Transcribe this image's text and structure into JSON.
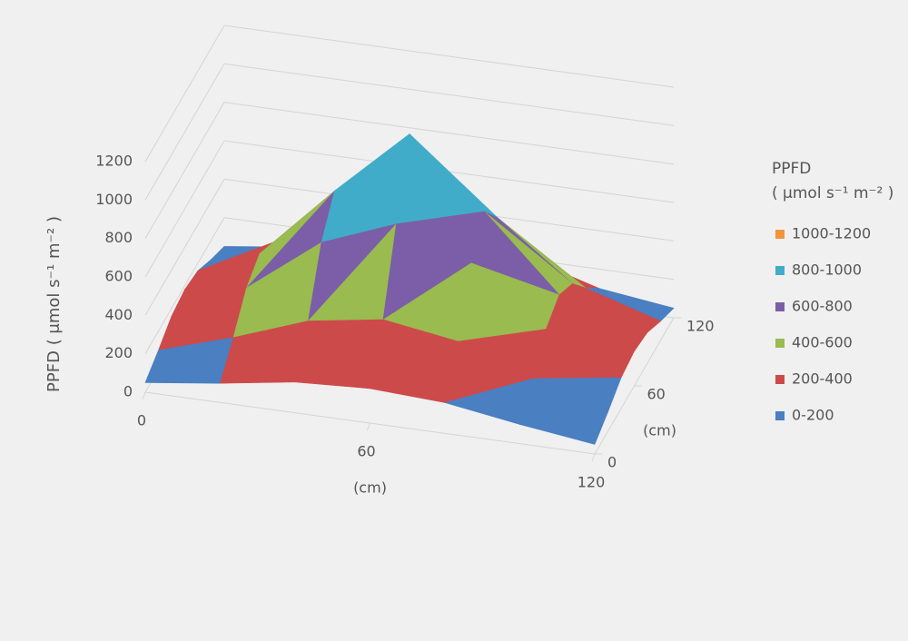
{
  "chart_data": {
    "type": "surface",
    "x": [
      0,
      20,
      40,
      60,
      80,
      100,
      120
    ],
    "y": [
      0,
      20,
      40,
      60,
      80,
      100,
      120
    ],
    "z": [
      [
        50,
        100,
        160,
        180,
        160,
        100,
        50
      ],
      [
        100,
        220,
        360,
        420,
        360,
        220,
        100
      ],
      [
        160,
        360,
        650,
        800,
        650,
        360,
        160
      ],
      [
        180,
        420,
        800,
        1150,
        800,
        420,
        180
      ],
      [
        160,
        360,
        650,
        800,
        650,
        360,
        160
      ],
      [
        100,
        220,
        360,
        420,
        360,
        220,
        100
      ],
      [
        50,
        100,
        160,
        180,
        160,
        100,
        50
      ]
    ],
    "xlim": [
      0,
      120
    ],
    "xticks": [
      0,
      60,
      120
    ],
    "xlabel": "(cm)",
    "ylim": [
      0,
      120
    ],
    "yticks": [
      0,
      60,
      120
    ],
    "ylabel": "(cm)",
    "zlim": [
      0,
      1200
    ],
    "zticks": [
      0,
      200,
      400,
      600,
      800,
      1000,
      1200
    ],
    "zlabel": "PPFD ( μmol s⁻¹ m⁻² )",
    "grid": true,
    "legend_title": [
      "PPFD",
      "( μmol s⁻¹ m⁻² )"
    ],
    "legend": [
      {
        "name": "0-200",
        "color": "#4a7fc1"
      },
      {
        "name": "200-400",
        "color": "#cd4a4a"
      },
      {
        "name": "400-600",
        "color": "#99bb4f"
      },
      {
        "name": "600-800",
        "color": "#7b5ea7"
      },
      {
        "name": "800-1000",
        "color": "#41acc9"
      },
      {
        "name": "1000-1200",
        "color": "#f0953e"
      }
    ]
  }
}
